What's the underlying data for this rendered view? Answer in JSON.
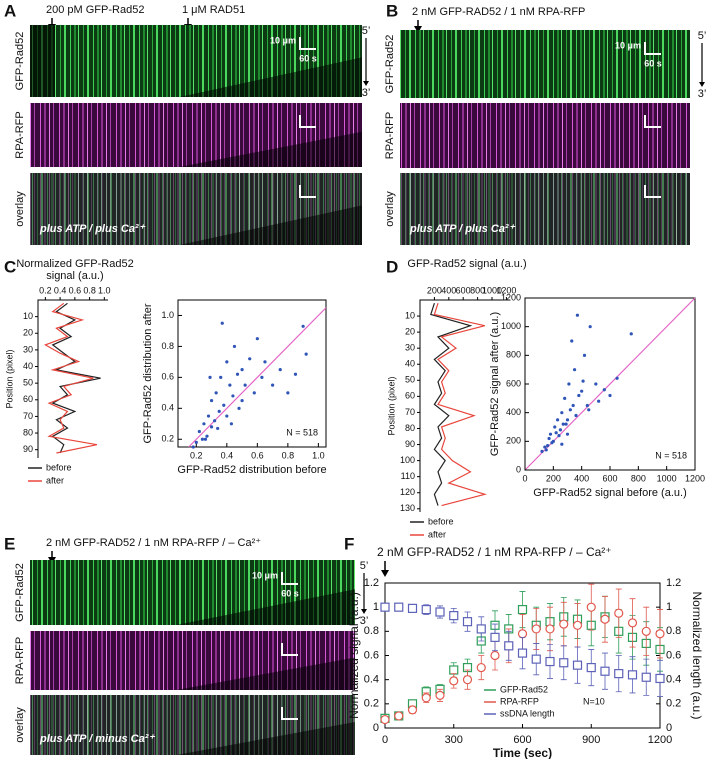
{
  "panel_letters": [
    "A",
    "B",
    "C",
    "D",
    "E",
    "F"
  ],
  "kymographs": [
    {
      "annotations": [
        "200 pM GFP-Rad52",
        "1 μM RAD51"
      ],
      "rows": [
        "GFP-Rad52",
        "RPA-RFP",
        "overlay"
      ],
      "scale_bar": [
        "10 μm",
        "60 s"
      ],
      "direction": [
        "5’",
        "3’"
      ],
      "condition": "plus ATP / plus Ca²⁺"
    },
    {
      "annotations": [
        "2 nM GFP-RAD52 / 1 nM RPA-RFP"
      ],
      "rows": [
        "GFP-Rad52",
        "RPA-RFP",
        "overlay"
      ],
      "scale_bar": [
        "10 μm",
        "60 s"
      ],
      "direction": [
        "5’",
        "3’"
      ],
      "condition": "plus ATP / plus Ca²⁺"
    },
    {
      "annotations": [
        "2 nM GFP-RAD52 / 1 nM RPA-RFP / – Ca²⁺"
      ],
      "rows": [
        "GFP-Rad52",
        "RPA-RFP",
        "overlay"
      ],
      "scale_bar": [
        "10 μm",
        "60 s"
      ],
      "direction": [
        "5’",
        "3’"
      ],
      "condition": "plus ATP / minus Ca²⁺"
    }
  ],
  "chart_data": [
    {
      "type": "line",
      "orientation": "vertical",
      "title_lines": [
        "Normalized GFP-Rad52",
        "signal (a.u.)"
      ],
      "ylabel": "Position (pixel)",
      "x": [
        2,
        7,
        12,
        17,
        22,
        27,
        32,
        37,
        42,
        47,
        52,
        57,
        62,
        67,
        72,
        77,
        82,
        87,
        92
      ],
      "series": [
        {
          "name": "before",
          "color": "#222222",
          "values": [
            0.5,
            0.35,
            0.6,
            0.4,
            0.55,
            0.3,
            0.45,
            0.6,
            0.35,
            0.95,
            0.4,
            0.5,
            0.3,
            0.6,
            0.35,
            0.5,
            0.3,
            0.45,
            0.4
          ]
        },
        {
          "name": "after",
          "color": "#e8463c",
          "values": [
            0.45,
            0.3,
            0.7,
            0.35,
            0.5,
            0.2,
            0.4,
            0.65,
            0.3,
            0.85,
            0.45,
            0.55,
            0.25,
            0.5,
            0.4,
            0.45,
            0.25,
            0.9,
            0.35
          ]
        }
      ],
      "xlim": [
        0.1,
        1.05
      ],
      "xticks": [
        0.2,
        0.4,
        0.6,
        0.8,
        {
          "value": 1,
          "label": "1.0"
        }
      ],
      "ylim": [
        0,
        95
      ],
      "yticks": [
        10,
        20,
        30,
        40,
        50,
        60,
        70,
        80,
        90
      ]
    },
    {
      "type": "scatter",
      "xlabel": "GFP-Rad52 distribution before",
      "ylabel": "GFP-Rad52 distribution after",
      "annotation": "N = 518",
      "color": "#2f55b8",
      "diagonal": true,
      "diagonal_color": "#e464c6",
      "x": [
        0.18,
        0.2,
        0.22,
        0.24,
        0.25,
        0.27,
        0.28,
        0.3,
        0.3,
        0.32,
        0.33,
        0.35,
        0.36,
        0.38,
        0.4,
        0.4,
        0.42,
        0.44,
        0.45,
        0.47,
        0.48,
        0.5,
        0.52,
        0.55,
        0.58,
        0.6,
        0.63,
        0.65,
        0.7,
        0.75,
        0.8,
        0.85,
        0.9,
        0.92,
        0.26,
        0.34,
        0.43,
        0.5,
        0.37,
        0.29
      ],
      "values": [
        0.15,
        0.18,
        0.25,
        0.2,
        0.3,
        0.22,
        0.35,
        0.28,
        0.45,
        0.32,
        0.5,
        0.38,
        0.6,
        0.42,
        0.35,
        0.7,
        0.55,
        0.48,
        0.8,
        0.62,
        0.4,
        0.65,
        0.55,
        0.72,
        0.5,
        0.85,
        0.6,
        0.7,
        0.55,
        0.65,
        0.5,
        0.62,
        0.93,
        0.75,
        0.2,
        0.27,
        0.3,
        0.45,
        0.95,
        0.6
      ],
      "xlim": [
        0.08,
        1.05
      ],
      "xticks": [
        0.2,
        0.4,
        0.6,
        0.8,
        {
          "value": 1,
          "label": "1.0"
        }
      ],
      "ylim": [
        0.15,
        1.1
      ],
      "yticks": [
        0.2,
        0.4,
        0.6,
        0.8,
        {
          "value": 1,
          "label": "1.0"
        }
      ]
    },
    {
      "type": "line",
      "orientation": "vertical",
      "title_lines": [
        "GFP-Rad52 signal (a.u.)"
      ],
      "ylabel": "Position (pixel)",
      "x": [
        2,
        9,
        16,
        23,
        30,
        37,
        44,
        51,
        58,
        65,
        72,
        79,
        86,
        93,
        100,
        107,
        114,
        121,
        128
      ],
      "series": [
        {
          "name": "before",
          "color": "#222222",
          "values": [
            200,
            150,
            700,
            250,
            400,
            200,
            350,
            250,
            300,
            200,
            400,
            250,
            300,
            200,
            350,
            250,
            300,
            200,
            250
          ]
        },
        {
          "name": "after",
          "color": "#e8463c",
          "values": [
            250,
            200,
            900,
            300,
            500,
            250,
            400,
            300,
            350,
            250,
            750,
            300,
            350,
            300,
            450,
            700,
            400,
            900,
            300
          ]
        }
      ],
      "xlim": [
        0,
        1250
      ],
      "xticks": [
        200,
        400,
        600,
        800,
        1000,
        1200
      ],
      "ylim": [
        0,
        132
      ],
      "yticks": [
        10,
        20,
        30,
        40,
        50,
        60,
        70,
        80,
        90,
        100,
        110,
        120,
        130
      ]
    },
    {
      "type": "scatter",
      "xlabel": "GFP-Rad52 signal before (a.u.)",
      "ylabel": "GFP-Rad52 signal after (a.u.)",
      "annotation": "N = 518",
      "color": "#2f55b8",
      "diagonal": true,
      "diagonal_color": "#e464c6",
      "x": [
        120,
        140,
        160,
        170,
        180,
        200,
        210,
        220,
        230,
        250,
        260,
        270,
        280,
        300,
        310,
        320,
        340,
        350,
        360,
        380,
        400,
        420,
        440,
        460,
        500,
        520,
        560,
        600,
        650,
        750,
        150,
        190,
        240,
        290,
        330,
        370,
        410,
        450,
        300,
        260
      ],
      "values": [
        130,
        160,
        170,
        220,
        250,
        200,
        300,
        260,
        350,
        280,
        400,
        320,
        500,
        350,
        600,
        420,
        450,
        700,
        380,
        520,
        550,
        800,
        450,
        1000,
        600,
        480,
        560,
        520,
        640,
        950,
        140,
        190,
        240,
        320,
        900,
        1080,
        620,
        420,
        250,
        180
      ],
      "xlim": [
        0,
        1200
      ],
      "xticks": [
        0,
        200,
        400,
        600,
        800,
        1000,
        1200
      ],
      "ylim": [
        0,
        1200
      ],
      "yticks": [
        0,
        200,
        400,
        600,
        800,
        1000,
        1200
      ]
    },
    {
      "type": "errorbar",
      "annotation": "2 nM GFP-RAD52 / 1 nM RPA-RFP / – Ca²⁺",
      "xlabel": "Time (sec)",
      "ylabel": "Normalized signal (a.u.)",
      "y2label": "Normalized length (a.u.)",
      "note": "N=10",
      "legend": "bottom",
      "x": [
        0,
        60,
        120,
        180,
        240,
        300,
        360,
        420,
        480,
        540,
        600,
        660,
        720,
        780,
        840,
        900,
        960,
        1020,
        1080,
        1140,
        1200
      ],
      "series": [
        {
          "name": "GFP-Rad52",
          "color": "#2f9e5a",
          "marker": "square",
          "values": [
            0.08,
            0.1,
            0.2,
            0.3,
            0.32,
            0.48,
            0.5,
            0.72,
            0.85,
            0.82,
            0.98,
            0.85,
            0.88,
            0.92,
            0.9,
            0.85,
            0.92,
            0.8,
            0.75,
            0.7,
            0.65
          ],
          "errors": [
            0.02,
            0.02,
            0.03,
            0.04,
            0.04,
            0.06,
            0.07,
            0.1,
            0.12,
            0.12,
            0.15,
            0.15,
            0.15,
            0.16,
            0.16,
            0.17,
            0.17,
            0.18,
            0.18,
            0.18,
            0.18
          ]
        },
        {
          "name": "RPA-RFP",
          "color": "#e2584e",
          "marker": "circle",
          "values": [
            0.07,
            0.1,
            0.15,
            0.25,
            0.27,
            0.39,
            0.4,
            0.5,
            0.6,
            0.68,
            0.78,
            0.82,
            0.82,
            0.86,
            0.85,
            1.0,
            0.9,
            0.95,
            0.87,
            0.8,
            0.78
          ],
          "errors": [
            0.02,
            0.02,
            0.03,
            0.04,
            0.05,
            0.06,
            0.08,
            0.1,
            0.12,
            0.14,
            0.16,
            0.17,
            0.18,
            0.18,
            0.18,
            0.19,
            0.19,
            0.2,
            0.2,
            0.2,
            0.2
          ]
        },
        {
          "name": "ssDNA length",
          "color": "#5c62b8",
          "marker": "square",
          "axis": "y2",
          "values": [
            1.0,
            1.0,
            0.99,
            0.98,
            0.96,
            0.93,
            0.88,
            0.82,
            0.75,
            0.68,
            0.62,
            0.57,
            0.55,
            0.54,
            0.52,
            0.5,
            0.47,
            0.45,
            0.44,
            0.42,
            0.41
          ],
          "errors": [
            0.02,
            0.02,
            0.03,
            0.04,
            0.05,
            0.06,
            0.08,
            0.1,
            0.11,
            0.12,
            0.13,
            0.13,
            0.14,
            0.14,
            0.15,
            0.15,
            0.15,
            0.15,
            0.15,
            0.15,
            0.15
          ]
        }
      ],
      "xlim": [
        0,
        1200
      ],
      "xticks": [
        0,
        300,
        600,
        900,
        1200
      ],
      "ylim": [
        0,
        1.2
      ],
      "yticks": [
        0,
        0.2,
        0.4,
        0.6,
        0.8,
        1,
        1.2
      ],
      "y2lim": [
        0,
        1.2
      ],
      "y2ticks": [
        0,
        0.2,
        0.4,
        0.6,
        0.8,
        1,
        1.2
      ]
    }
  ]
}
